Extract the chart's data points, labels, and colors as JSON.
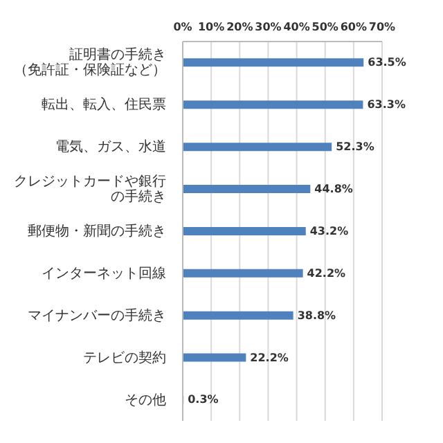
{
  "chart_data": {
    "type": "bar",
    "orientation": "horizontal",
    "categories": [
      "証明書の手続き（免許証・保険証など）",
      "転出、転入、住民票",
      "電気、ガス、水道",
      "クレジットカードや銀行の手続き",
      "郵便物・新聞の手続き",
      "インターネット回線",
      "マイナンバーの手続き",
      "テレビの契約",
      "その他"
    ],
    "values": [
      63.5,
      63.3,
      52.3,
      44.8,
      43.2,
      42.2,
      38.8,
      22.2,
      0.3
    ],
    "value_labels": [
      "63.5%",
      "63.3%",
      "52.3%",
      "44.8%",
      "43.2%",
      "42.2%",
      "38.8%",
      "22.2%",
      "0.3%"
    ],
    "color": "#4f81bd",
    "xlim": [
      0,
      70
    ],
    "xticks": [
      {
        "value": 0,
        "label": "0%"
      },
      {
        "value": 10,
        "label": "10%"
      },
      {
        "value": 20,
        "label": "20%"
      },
      {
        "value": 30,
        "label": "30%"
      },
      {
        "value": 40,
        "label": "40%"
      },
      {
        "value": 50,
        "label": "50%"
      },
      {
        "value": 60,
        "label": "60%"
      },
      {
        "value": 70,
        "label": "70%"
      }
    ],
    "grid": "x"
  }
}
